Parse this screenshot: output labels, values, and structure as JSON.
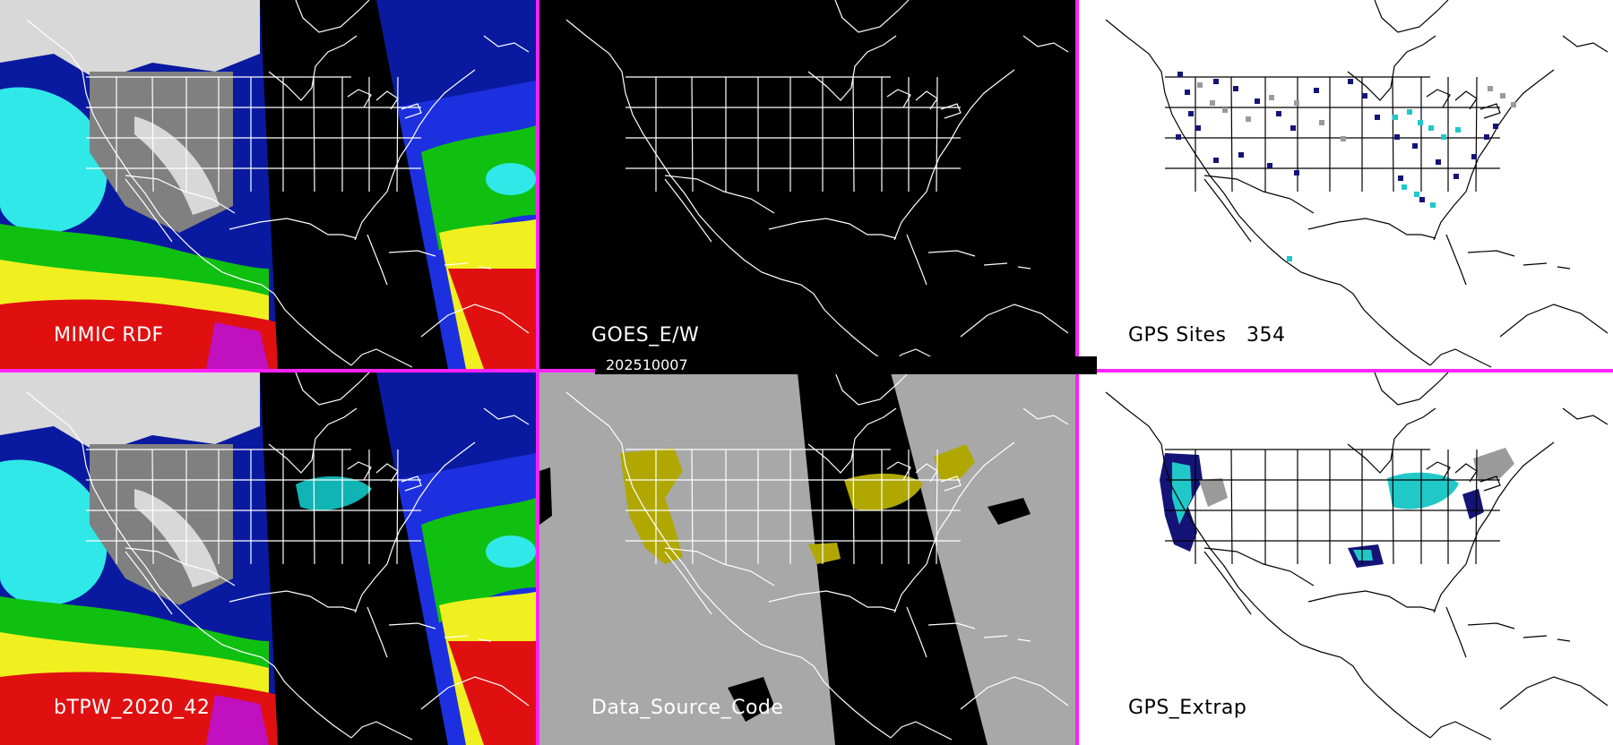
{
  "timestamp": "202510007",
  "divider_color": "#ff22ff",
  "panels": [
    {
      "id": "mimic",
      "label": "MIMIC RDF",
      "type": "tpw-field"
    },
    {
      "id": "goes",
      "label": "GOES_E/W",
      "type": "black-basemap"
    },
    {
      "id": "gps",
      "label": "GPS Sites   354",
      "type": "white-sites"
    },
    {
      "id": "btpw",
      "label": "bTPW_2020_42",
      "type": "tpw-field"
    },
    {
      "id": "dsc",
      "label": "Data_Source_Code",
      "type": "gray-source"
    },
    {
      "id": "gpsx",
      "label": "GPS_Extrap",
      "type": "white-extrap"
    }
  ],
  "colors": {
    "tpw_scale": [
      "#d8d8d8",
      "#808080",
      "#0a1aa0",
      "#1c30e0",
      "#10b4b4",
      "#30e8e8",
      "#10c010",
      "#60e050",
      "#f0f020",
      "#e0c000",
      "#e01010",
      "#a00010",
      "#c010c0"
    ],
    "source_yellow": "#b0a800",
    "source_gray": "#a8a8a8",
    "site_navy": "#141478",
    "site_cyan": "#20c8c8",
    "site_gray": "#9a9a9a"
  }
}
